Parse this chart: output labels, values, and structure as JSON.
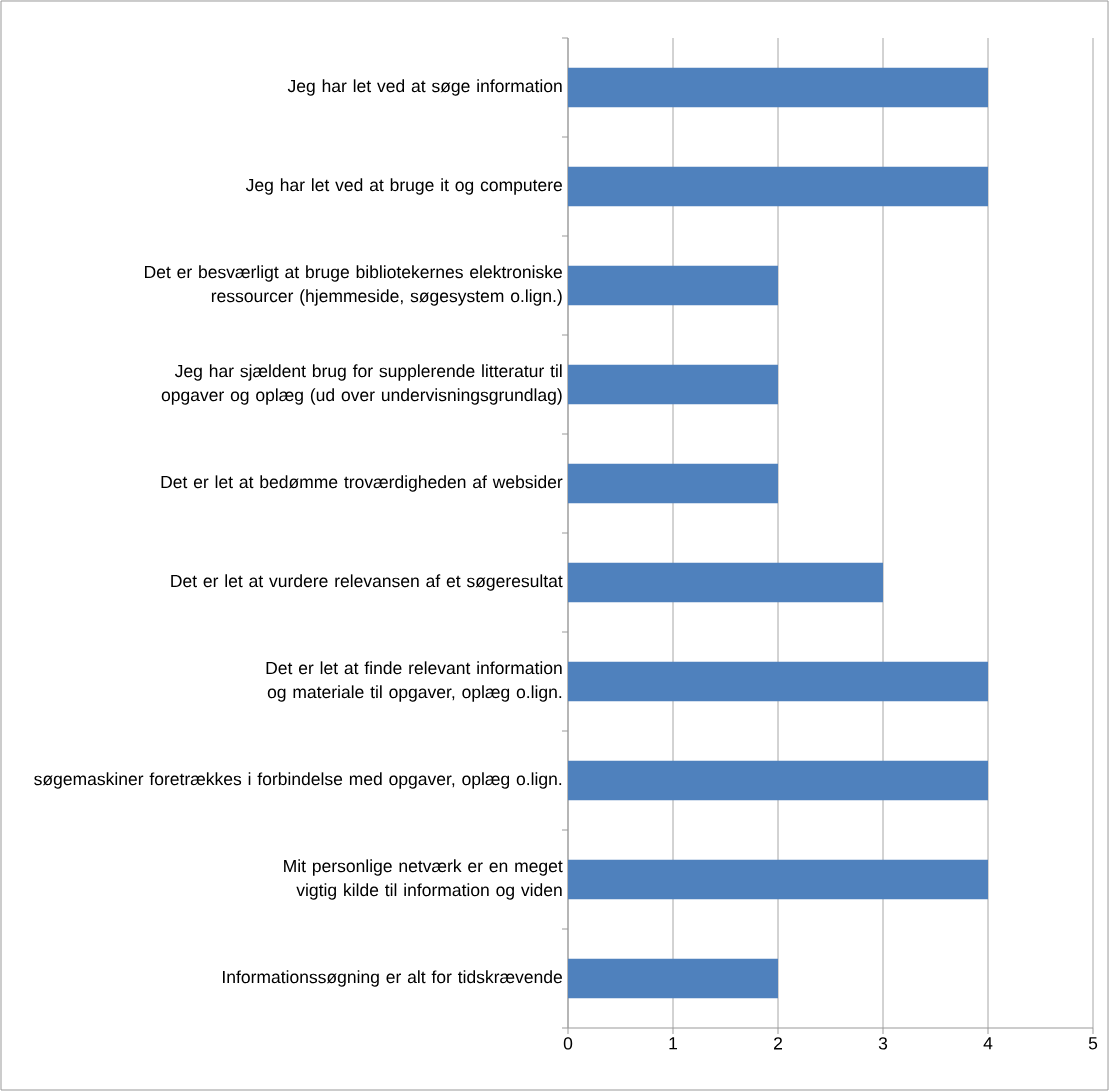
{
  "chart_data": {
    "type": "bar",
    "orientation": "horizontal",
    "categories": [
      "Jeg  har let ved at søge information",
      "Jeg har let ved at bruge it og computere",
      "Det er besværligt at bruge bibliotekernes elektroniske ressourcer (hjemmeside, søgesystem o.lign.)",
      "Jeg har sjældent brug for supplerende litteratur til opgaver og oplæg (ud over undervisningsgrundlag)",
      "Det er let at bedømme troværdigheden af websider",
      "Det er let at vurdere relevansen af  et søgeresultat",
      "Det er let at finde relevant information og materiale til opgaver, oplæg o.lign.",
      "søgemaskiner foretrækkes i forbindelse med opgaver, oplæg o.lign.",
      "Mit personlige netværk er en meget vigtig kilde til information og viden",
      "Informationssøgning er alt for tidskrævende"
    ],
    "values": [
      4,
      4,
      2,
      2,
      2,
      3,
      4,
      4,
      4,
      2
    ],
    "color": "#4f81bd",
    "xlim": [
      0,
      5
    ],
    "xticks": [
      0,
      1,
      2,
      3,
      4,
      5
    ],
    "grid": "x"
  }
}
